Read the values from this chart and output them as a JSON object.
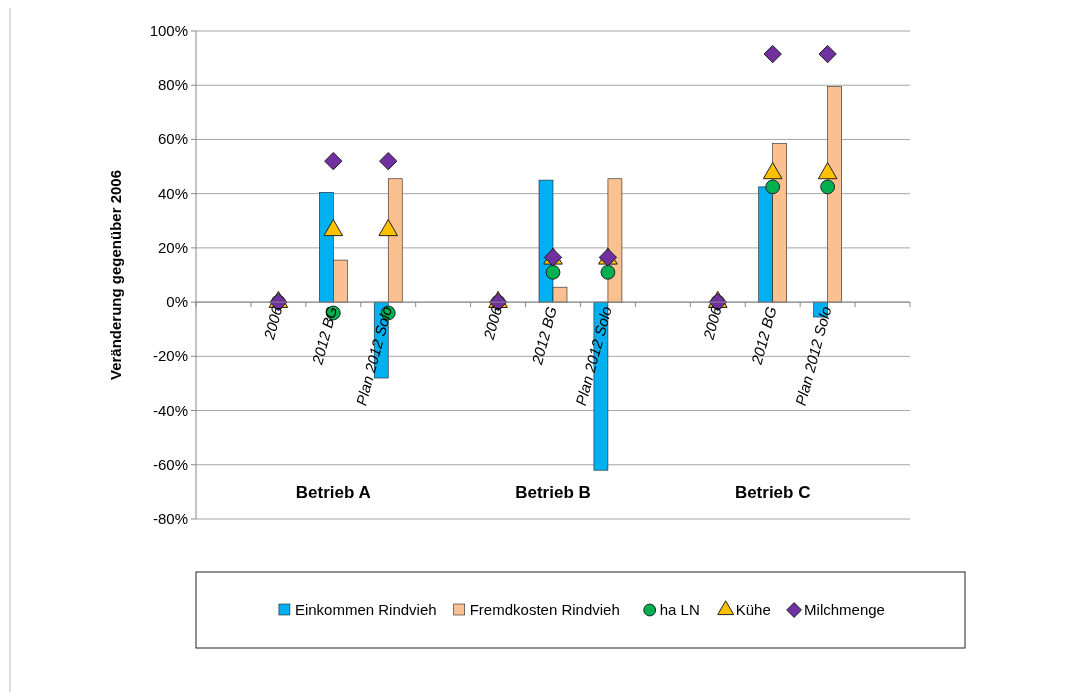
{
  "chart_data": {
    "type": "bar",
    "ylabel": "Veränderung gegenüber 2006",
    "categories": [
      null,
      "2006",
      "2012 BG",
      "Plan 2012 Solo",
      null,
      "2006",
      "2012 BG",
      "Plan 2012 Solo",
      null,
      "2006",
      "2012 BG",
      "Plan 2012 Solo",
      null
    ],
    "series": [
      {
        "name": "Einkommen Rindvieh",
        "color": "#00b0f0",
        "values": [
          null,
          0,
          40.5,
          -28,
          null,
          0,
          45,
          -62,
          null,
          0,
          42.5,
          -5.5,
          null
        ]
      },
      {
        "name": "Fremdkosten Rindvieh",
        "color": "#fac090",
        "values": [
          null,
          0,
          15.5,
          45.5,
          null,
          0,
          5.5,
          45.5,
          null,
          0,
          58.5,
          79.5,
          null
        ]
      },
      {
        "name": "ha LN",
        "type": "scatter",
        "marker": "circle",
        "color": "#00b050",
        "values": [
          null,
          0,
          -4,
          -4,
          null,
          0,
          11,
          11,
          null,
          0,
          42.5,
          42.5,
          null
        ]
      },
      {
        "name": "Kühe",
        "type": "scatter",
        "marker": "triangle",
        "color": "#ffc000",
        "values": [
          null,
          0,
          26.5,
          26.5,
          null,
          0,
          16,
          16,
          null,
          0,
          47.5,
          47.5,
          null
        ]
      },
      {
        "name": "Milchmenge",
        "type": "scatter",
        "marker": "diamond",
        "color": "#7030a0",
        "values": [
          null,
          0,
          52,
          52,
          null,
          0,
          16.5,
          16.5,
          null,
          0,
          91.5,
          91.5,
          null
        ]
      }
    ],
    "ylim": [
      -80,
      100
    ],
    "yticks": [
      {
        "value": -80,
        "label": "-80%"
      },
      {
        "value": -60,
        "label": "-60%"
      },
      {
        "value": -40,
        "label": "-40%"
      },
      {
        "value": -20,
        "label": "-20%"
      },
      {
        "value": 0,
        "label": "0%"
      },
      {
        "value": 20,
        "label": "20%"
      },
      {
        "value": 40,
        "label": "40%"
      },
      {
        "value": 60,
        "label": "60%"
      },
      {
        "value": 80,
        "label": "80%"
      },
      {
        "value": 100,
        "label": "100%"
      }
    ],
    "grid": "y",
    "legend": "bottom",
    "annotations": [
      "Betrieb A",
      "Betrieb B",
      "Betrieb C"
    ]
  }
}
